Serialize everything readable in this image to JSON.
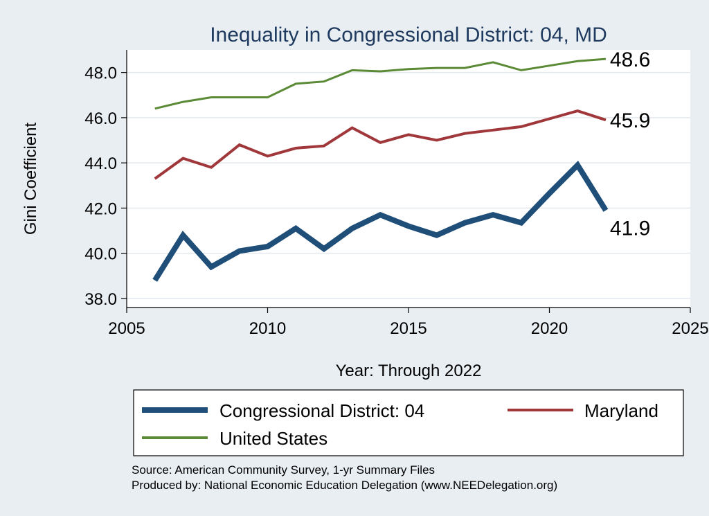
{
  "chart_data": {
    "type": "line",
    "title": "Inequality in Congressional District:  04, MD",
    "xlabel": "Year: Through 2022",
    "ylabel": "Gini Coefficient",
    "xlim": [
      2005,
      2025
    ],
    "ylim": [
      37.6,
      49.0
    ],
    "x_ticks": [
      2005,
      2010,
      2015,
      2020,
      2025
    ],
    "x_tick_labels": [
      "2005",
      "2010",
      "2015",
      "2020",
      "2025"
    ],
    "y_ticks": [
      38,
      40,
      42,
      44,
      46,
      48
    ],
    "y_tick_labels": [
      "38.0",
      "40.0",
      "42.0",
      "44.0",
      "46.0",
      "48.0"
    ],
    "grid": true,
    "x": [
      2006,
      2007,
      2008,
      2009,
      2010,
      2011,
      2012,
      2013,
      2014,
      2015,
      2016,
      2017,
      2018,
      2019,
      2020,
      2021,
      2022
    ],
    "series": [
      {
        "name": "Congressional District:  04",
        "color": "#1f4e79",
        "end_label": "41.9",
        "values": [
          38.8,
          40.8,
          39.4,
          40.1,
          40.3,
          41.1,
          40.2,
          41.1,
          41.7,
          41.2,
          40.8,
          41.35,
          41.7,
          41.35,
          42.65,
          43.9,
          41.9
        ]
      },
      {
        "name": "Maryland",
        "color": "#a0373a",
        "end_label": "45.9",
        "values": [
          43.3,
          44.2,
          43.8,
          44.8,
          44.3,
          44.65,
          44.75,
          45.55,
          44.9,
          45.25,
          45.0,
          45.3,
          45.45,
          45.6,
          45.95,
          46.3,
          45.9
        ]
      },
      {
        "name": "United States",
        "color": "#5a8a35",
        "end_label": "48.6",
        "values": [
          46.4,
          46.7,
          46.9,
          46.9,
          46.9,
          47.5,
          47.6,
          48.1,
          48.05,
          48.15,
          48.2,
          48.2,
          48.45,
          48.1,
          48.3,
          48.5,
          48.6
        ]
      }
    ],
    "legend": {
      "position": "bottom",
      "items": [
        "Congressional District:  04",
        "Maryland",
        "United States"
      ]
    }
  },
  "source": {
    "line1": "Source: American Community Survey, 1-yr Summary Files",
    "line2": "Produced by: National Economic Education Delegation (www.NEEDelegation.org)"
  }
}
